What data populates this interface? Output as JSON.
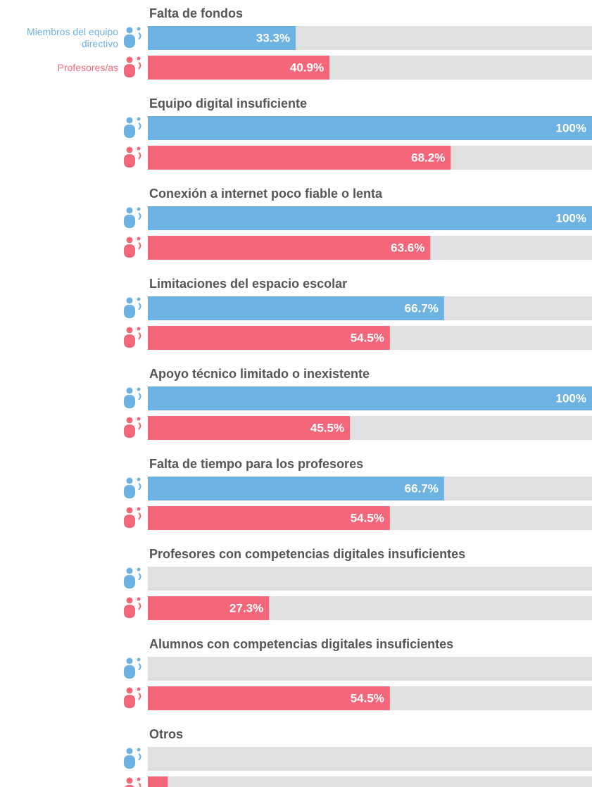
{
  "chart_data": {
    "type": "bar",
    "orientation": "horizontal",
    "categories": [
      "Falta de fondos",
      "Equipo digital insuficiente",
      "Conexión a internet poco fiable o lenta",
      "Limitaciones del espacio escolar",
      "Apoyo técnico limitado o inexistente",
      "Falta de tiempo para los profesores",
      "Profesores con competencias digitales insuficientes",
      "Alumnos con competencias digitales insuficientes",
      "Otros"
    ],
    "xlim": [
      0,
      100
    ],
    "series": [
      {
        "name": "Miembros del equipo directivo",
        "color": "#6cb2e2",
        "values": [
          33.3,
          100,
          100,
          66.7,
          100,
          66.7,
          0,
          0,
          0
        ],
        "value_labels": [
          "33.3%",
          "100%",
          "100%",
          "66.7%",
          "100%",
          "66.7%",
          null,
          null,
          null
        ]
      },
      {
        "name": "Profesores/as",
        "color": "#f4677b",
        "values": [
          40.9,
          68.2,
          63.6,
          54.5,
          45.5,
          54.5,
          27.3,
          54.5,
          4.5
        ],
        "value_labels": [
          "40.9%",
          "68.2%",
          "63.6%",
          "54.5%",
          "45.5%",
          "54.5%",
          "27.3%",
          "54.5%",
          null
        ]
      }
    ]
  }
}
